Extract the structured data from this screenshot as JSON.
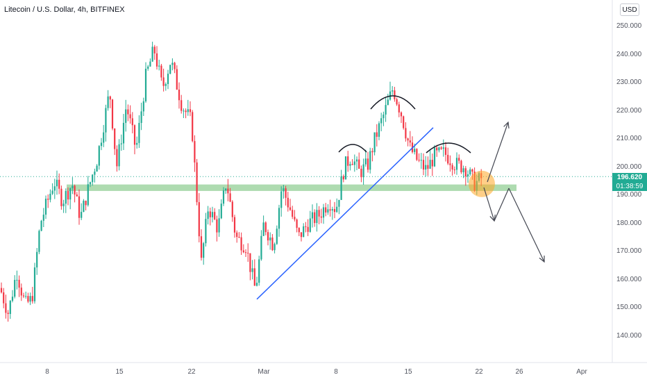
{
  "header": {
    "symbol_title": "Litecoin / U.S. Dollar, 4h, BITFINEX",
    "currency_button": "USD"
  },
  "price_tags": {
    "last_price": "196.620",
    "countdown": "01:38:59"
  },
  "colors": {
    "up": "#22ab94",
    "down": "#f23645",
    "trendline": "#2962ff",
    "support_zone": "#4caf50",
    "highlight": "#ffa726",
    "annotation": "#131722",
    "grid": "#f0f3fa"
  },
  "chart_data": {
    "type": "candlestick",
    "title": "Litecoin / U.S. Dollar, 4h, BITFINEX",
    "timeframe": "4h",
    "currency": "USD",
    "ylim": [
      130,
      255
    ],
    "yticks": [
      "250.000",
      "240.000",
      "230.000",
      "220.000",
      "210.000",
      "200.000",
      "190.000",
      "180.000",
      "170.000",
      "160.000",
      "150.000",
      "140.000"
    ],
    "xticks": [
      "8",
      "15",
      "22",
      "Mar",
      "8",
      "15",
      "22",
      "26",
      "Apr"
    ],
    "last_price": 196.62,
    "price_path": [
      [
        0,
        157
      ],
      [
        12,
        148
      ],
      [
        24,
        163
      ],
      [
        36,
        151
      ],
      [
        46,
        153
      ],
      [
        58,
        180
      ],
      [
        78,
        195
      ],
      [
        90,
        188
      ],
      [
        104,
        194
      ],
      [
        116,
        182
      ],
      [
        128,
        193
      ],
      [
        140,
        203
      ],
      [
        158,
        227
      ],
      [
        168,
        200
      ],
      [
        182,
        222
      ],
      [
        196,
        206
      ],
      [
        210,
        232
      ],
      [
        222,
        242
      ],
      [
        234,
        228
      ],
      [
        246,
        238
      ],
      [
        262,
        222
      ],
      [
        276,
        216
      ],
      [
        290,
        166
      ],
      [
        300,
        186
      ],
      [
        314,
        178
      ],
      [
        326,
        195
      ],
      [
        340,
        175
      ],
      [
        354,
        172
      ],
      [
        368,
        156
      ],
      [
        380,
        180
      ],
      [
        394,
        172
      ],
      [
        406,
        193
      ],
      [
        418,
        185
      ],
      [
        430,
        175
      ],
      [
        444,
        180
      ],
      [
        460,
        183
      ],
      [
        474,
        188
      ],
      [
        484,
        185
      ],
      [
        496,
        200
      ],
      [
        506,
        204
      ],
      [
        518,
        198
      ],
      [
        530,
        201
      ],
      [
        540,
        210
      ],
      [
        552,
        218
      ],
      [
        566,
        228
      ],
      [
        578,
        219
      ],
      [
        590,
        207
      ],
      [
        602,
        202
      ],
      [
        614,
        199
      ],
      [
        626,
        204
      ],
      [
        640,
        205
      ],
      [
        656,
        201
      ],
      [
        670,
        200
      ],
      [
        684,
        194
      ],
      [
        696,
        196.6
      ]
    ],
    "support_zone": {
      "low": 191.5,
      "high": 193.8
    },
    "trendline": {
      "from_price": 153,
      "to_price": 214
    },
    "annotations": [
      "head-and-shoulders arcs",
      "highlight circle on last price",
      "scenario arrows up and down"
    ],
    "grid": false
  }
}
